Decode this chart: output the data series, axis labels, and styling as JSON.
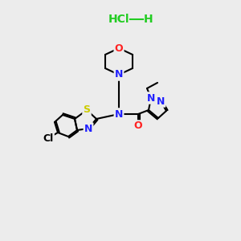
{
  "background_color": "#ececec",
  "hcl_text": "HCl",
  "hcl_dash": true,
  "hcl_color": "#22cc22",
  "h_text": "H",
  "h_color": "#22cc22",
  "bond_color": "#000000",
  "bond_width": 1.5,
  "atom_colors": {
    "N": "#2222ff",
    "O": "#ff2222",
    "S": "#cccc00",
    "Cl_green": "#22cc22",
    "Cl_black": "#000000",
    "C": "#000000"
  },
  "font_size_atoms": 9,
  "font_size_hcl": 10
}
